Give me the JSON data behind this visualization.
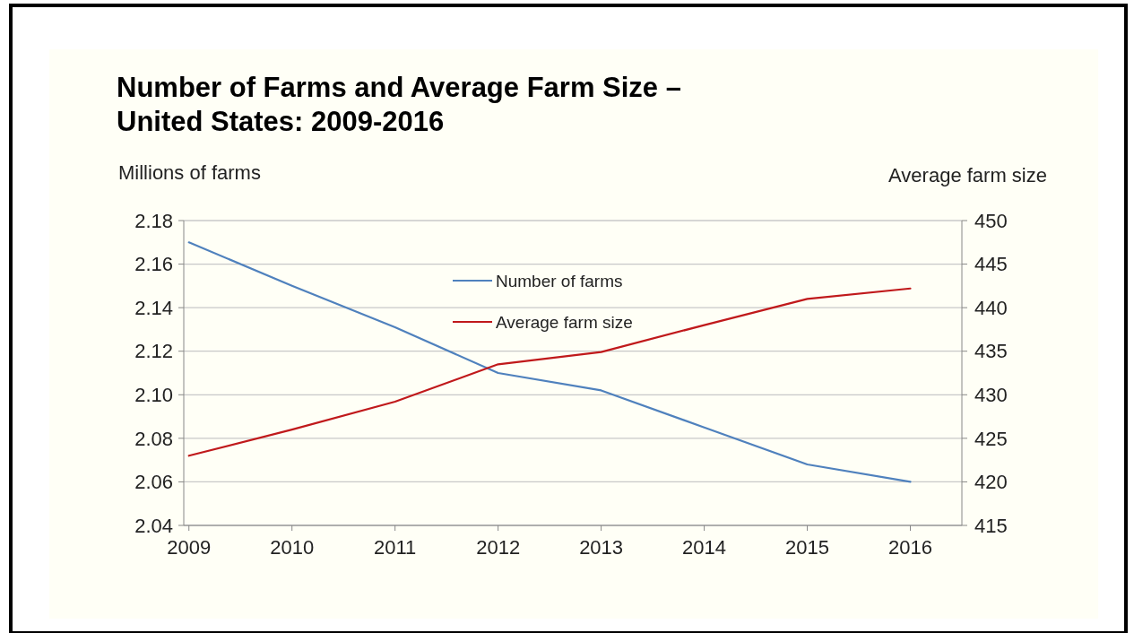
{
  "chart_data": {
    "type": "line",
    "title": "Number of Farms and Average Farm Size –\nUnited States: 2009-2016",
    "ylabel": "Millions of farms",
    "y2label": "Average farm size",
    "x": [
      2009,
      2010,
      2011,
      2012,
      2013,
      2014,
      2015,
      2016
    ],
    "xlim": [
      2008.95,
      2016.5
    ],
    "xticks": [
      2009,
      2010,
      2011,
      2012,
      2013,
      2014,
      2015,
      2016
    ],
    "ylim": [
      2.04,
      2.18
    ],
    "yticks": [
      {
        "value": 2.04,
        "label": "2.04"
      },
      {
        "value": 2.06,
        "label": "2.06"
      },
      {
        "value": 2.08,
        "label": "2.08"
      },
      {
        "value": 2.1,
        "label": "2.10"
      },
      {
        "value": 2.12,
        "label": "2.12"
      },
      {
        "value": 2.14,
        "label": "2.14"
      },
      {
        "value": 2.16,
        "label": "2.16"
      },
      {
        "value": 2.18,
        "label": "2.18"
      }
    ],
    "y2lim": [
      415,
      450
    ],
    "y2ticks": [
      415,
      420,
      425,
      430,
      435,
      440,
      445,
      450
    ],
    "series": [
      {
        "name": "Number of farms",
        "color": "#4f81bd",
        "values": [
          2.17,
          2.15,
          2.131,
          2.11,
          2.102,
          2.085,
          2.068,
          2.06
        ]
      },
      {
        "name": "Average farm size",
        "color": "#c0191b",
        "axis": "y2",
        "values": [
          423,
          426,
          429.2,
          433.5,
          434.9,
          438,
          441,
          442.2
        ]
      }
    ],
    "grid": "y",
    "legend": "top",
    "marker": "none",
    "line_style": "solid"
  }
}
